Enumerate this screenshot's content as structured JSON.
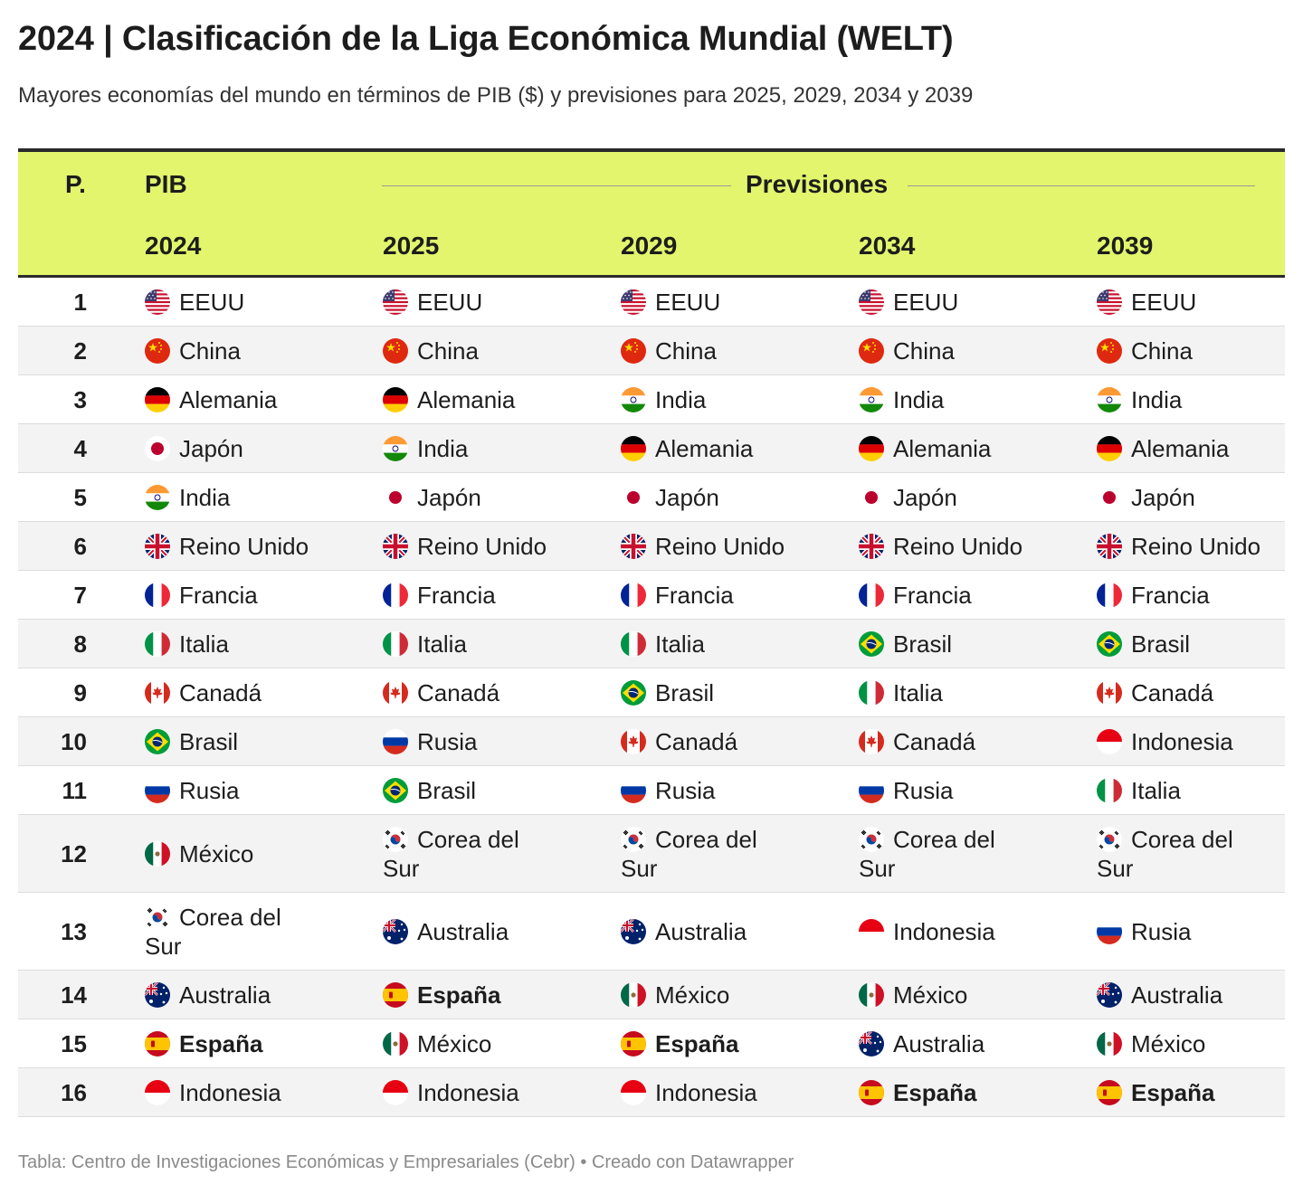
{
  "title": "2024 | Clasificación de la Liga Económica Mundial (WELT)",
  "subtitle": "Mayores economías del mundo en términos de PIB ($) y previsiones para 2025, 2029, 2034 y 2039",
  "source": "Tabla: Centro de Investigaciones Económicas y Empresariales (Cebr) • Creado con Datawrapper",
  "header": {
    "rank_label": "P.",
    "gdp_label": "PIB",
    "forecast_label": "Previsiones",
    "years": [
      "2024",
      "2025",
      "2029",
      "2034",
      "2039"
    ]
  },
  "colors": {
    "header_bg": "#e2f56d",
    "highlight": "España"
  },
  "chart_data": {
    "type": "table",
    "columns": [
      "P.",
      "2024",
      "2025",
      "2029",
      "2034",
      "2039"
    ],
    "rows": [
      {
        "rank": "1",
        "cells": [
          "EEUU",
          "EEUU",
          "EEUU",
          "EEUU",
          "EEUU"
        ]
      },
      {
        "rank": "2",
        "cells": [
          "China",
          "China",
          "China",
          "China",
          "China"
        ]
      },
      {
        "rank": "3",
        "cells": [
          "Alemania",
          "Alemania",
          "India",
          "India",
          "India"
        ]
      },
      {
        "rank": "4",
        "cells": [
          "Japón",
          "India",
          "Alemania",
          "Alemania",
          "Alemania"
        ]
      },
      {
        "rank": "5",
        "cells": [
          "India",
          "Japón",
          "Japón",
          "Japón",
          "Japón"
        ]
      },
      {
        "rank": "6",
        "cells": [
          "Reino Unido",
          "Reino Unido",
          "Reino Unido",
          "Reino Unido",
          "Reino Unido"
        ]
      },
      {
        "rank": "7",
        "cells": [
          "Francia",
          "Francia",
          "Francia",
          "Francia",
          "Francia"
        ]
      },
      {
        "rank": "8",
        "cells": [
          "Italia",
          "Italia",
          "Italia",
          "Brasil",
          "Brasil"
        ]
      },
      {
        "rank": "9",
        "cells": [
          "Canadá",
          "Canadá",
          "Brasil",
          "Italia",
          "Canadá"
        ]
      },
      {
        "rank": "10",
        "cells": [
          "Brasil",
          "Rusia",
          "Canadá",
          "Canadá",
          "Indonesia"
        ]
      },
      {
        "rank": "11",
        "cells": [
          "Rusia",
          "Brasil",
          "Rusia",
          "Rusia",
          "Italia"
        ]
      },
      {
        "rank": "12",
        "cells": [
          "México",
          "Corea del Sur",
          "Corea del Sur",
          "Corea del Sur",
          "Corea del Sur"
        ]
      },
      {
        "rank": "13",
        "cells": [
          "Corea del Sur",
          "Australia",
          "Australia",
          "Indonesia",
          "Rusia"
        ]
      },
      {
        "rank": "14",
        "cells": [
          "Australia",
          "España",
          "México",
          "México",
          "Australia"
        ]
      },
      {
        "rank": "15",
        "cells": [
          "España",
          "México",
          "España",
          "Australia",
          "México"
        ]
      },
      {
        "rank": "16",
        "cells": [
          "Indonesia",
          "Indonesia",
          "Indonesia",
          "España",
          "España"
        ]
      }
    ]
  }
}
